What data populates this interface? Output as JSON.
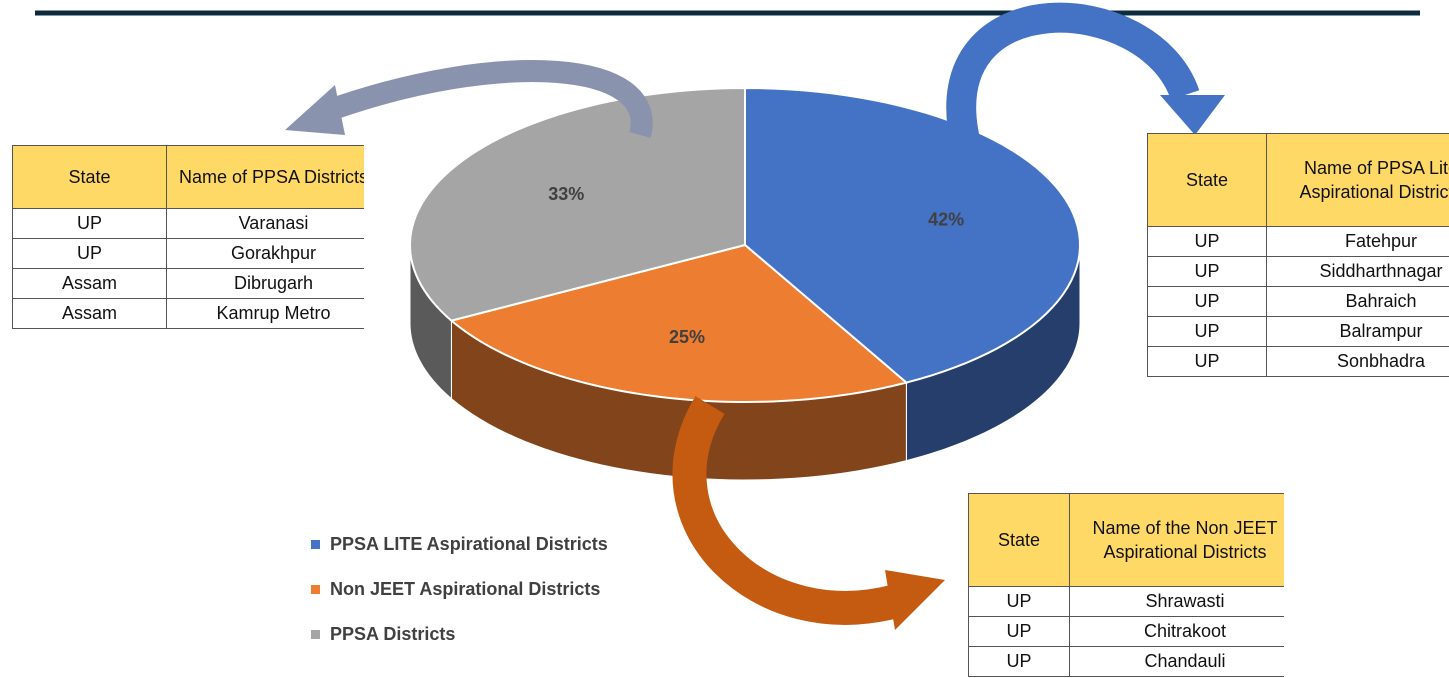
{
  "chart_data": {
    "type": "pie",
    "categories": [
      "PPSA LITE Aspirational Districts",
      "Non JEET Aspirational Districts",
      "PPSA Districts"
    ],
    "values": [
      42,
      25,
      33
    ],
    "value_labels": [
      "42%",
      "25%",
      "33%"
    ],
    "colors": [
      "#4472c4",
      "#ed7d31",
      "#a5a5a5"
    ],
    "legend": "bottom-left"
  },
  "tables": [
    {
      "header": [
        "State",
        "Name of PPSA Districts"
      ],
      "rows": [
        [
          "UP",
          "Varanasi"
        ],
        [
          "UP",
          "Gorakhpur"
        ],
        [
          "Assam",
          "Dibrugarh"
        ],
        [
          "Assam",
          "Kamrup Metro"
        ]
      ]
    },
    {
      "header": [
        "State",
        "Name of PPSA Lite Aspirational Districts"
      ],
      "rows": [
        [
          "UP",
          "Fatehpur"
        ],
        [
          "UP",
          "Siddharthnagar"
        ],
        [
          "UP",
          "Bahraich"
        ],
        [
          "UP",
          "Balrampur"
        ],
        [
          "UP",
          "Sonbhadra"
        ]
      ]
    },
    {
      "header": [
        "State",
        "Name of the Non JEET Aspirational Districts"
      ],
      "rows": [
        [
          "UP",
          "Shrawasti"
        ],
        [
          "UP",
          "Chitrakoot"
        ],
        [
          "UP",
          "Chandauli"
        ]
      ]
    }
  ]
}
